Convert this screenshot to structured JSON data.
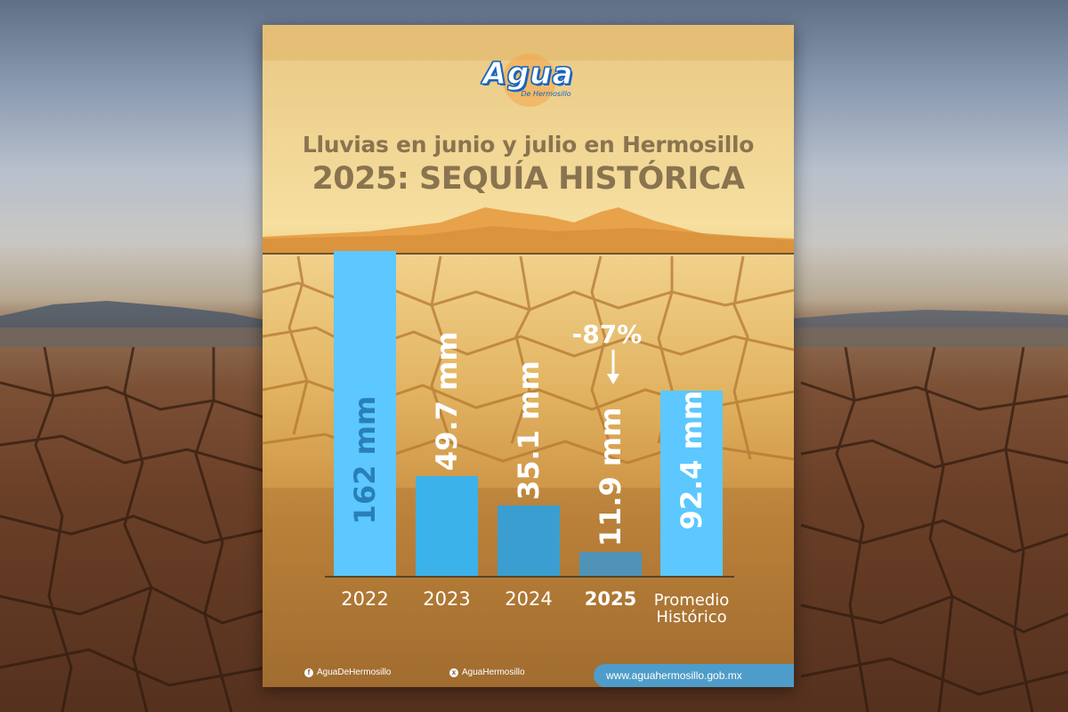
{
  "logo": {
    "word": "Agua",
    "sub": "De Hermosillo"
  },
  "title_line1": "Lluvias en junio y julio en Hermosillo",
  "title_line2": "2025: SEQUÍA HISTÓRICA",
  "chart_data": {
    "type": "bar",
    "categories": [
      "2022",
      "2023",
      "2024",
      "2025",
      "Promedio Histórico"
    ],
    "values": [
      162,
      49.7,
      35.1,
      11.9,
      92.4
    ],
    "value_labels": [
      "162 mm",
      "49.7 mm",
      "35.1 mm",
      "11.9 mm",
      "92.4 mm"
    ],
    "category_lines": [
      [
        "2022"
      ],
      [
        "2023"
      ],
      [
        "2024"
      ],
      [
        "2025"
      ],
      [
        "Promedio",
        "Histórico"
      ]
    ],
    "annotation": {
      "category": "2025",
      "text": "-87%",
      "arrow": "down"
    },
    "bold_category": "2025",
    "unit": "mm",
    "grid": false,
    "colors": [
      "#5cc8ff",
      "#3cb2ea",
      "#3a9fd0",
      "#4f93b8",
      "#5cc8ff"
    ],
    "label_colors": [
      "#2a7fb8",
      "#ffffff",
      "#ffffff",
      "#ffffff",
      "#ffffff"
    ]
  },
  "footer": {
    "facebook": "AguaDeHermosillo",
    "x": "AguaHermosillo",
    "url": "www.aguahermosillo.gob.mx"
  },
  "icons": {
    "facebook": "facebook-icon",
    "x": "x-icon"
  }
}
